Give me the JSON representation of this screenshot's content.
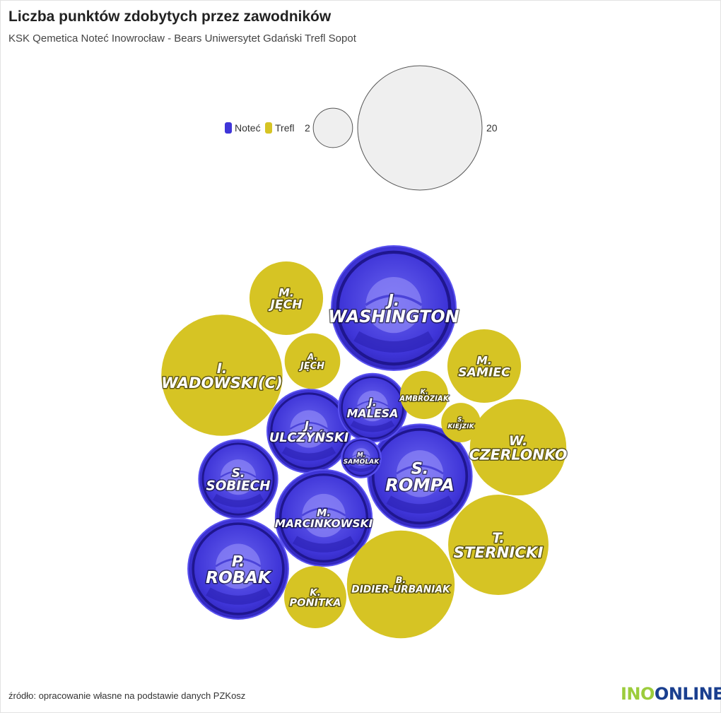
{
  "title": "Liczba punktów zdobytych przez zawodników",
  "subtitle": "KSK Qemetica Noteć Inowrocław - Bears Uniwersytet Gdański Trefl Sopot",
  "source": "źródło: opracowanie własne na podstawie danych PZKosz",
  "logo": {
    "part1": "INO",
    "part2": "ONLINE"
  },
  "colors": {
    "notec": "#3f35d8",
    "notec_light": "#6a64f0",
    "trefl": "#d6c424",
    "legend_bubble": "#efefef"
  },
  "chart_data": {
    "type": "bubble",
    "legend": {
      "series": [
        {
          "name": "Noteć",
          "color": "#3f35d8"
        },
        {
          "name": "Trefl",
          "color": "#d6c424"
        }
      ],
      "size_items": [
        {
          "label": "2",
          "value": 2
        },
        {
          "label": "20",
          "value": 20
        }
      ]
    },
    "series": [
      {
        "name": "Noteć",
        "points": [
          {
            "player": "J. WASHINGTON",
            "value": 20
          },
          {
            "player": "S. ROMPA",
            "value": 14
          },
          {
            "player": "P. ROBAK",
            "value": 13
          },
          {
            "player": "J. ULCZYŃSKI",
            "value": 9
          },
          {
            "player": "M. MARCINKOWSKI",
            "value": 12
          },
          {
            "player": "S. SOBIECH",
            "value": 8
          },
          {
            "player": "J. MALESA",
            "value": 6
          },
          {
            "player": "M. SAMOLAK",
            "value": 2
          }
        ]
      },
      {
        "name": "Trefl",
        "points": [
          {
            "player": "I. WADOWSKI(C)",
            "value": 19
          },
          {
            "player": "B. DIDIER-URBANIAK",
            "value": 15
          },
          {
            "player": "T. STERNICKI",
            "value": 13
          },
          {
            "player": "W. CZERLONKO",
            "value": 12
          },
          {
            "player": "M. JĘCH",
            "value": 7
          },
          {
            "player": "M. SAMIEC",
            "value": 7
          },
          {
            "player": "K. PONITKA",
            "value": 5
          },
          {
            "player": "A. JĘCH",
            "value": 4
          },
          {
            "player": "K. AMBROZIAK",
            "value": 3
          },
          {
            "player": "S. KIEJZIK",
            "value": 2
          }
        ]
      }
    ]
  }
}
